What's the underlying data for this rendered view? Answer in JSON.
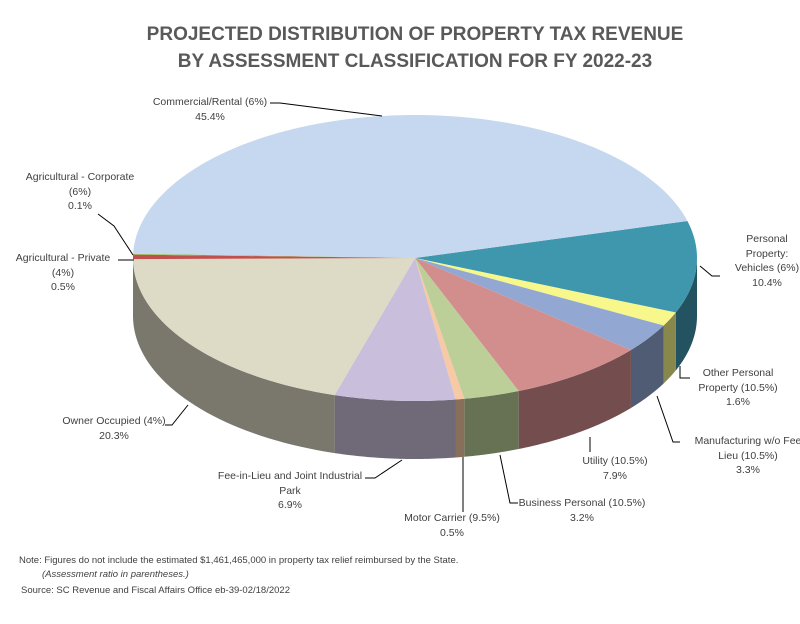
{
  "chart_data": {
    "type": "pie",
    "title": [
      "PROJECTED DISTRIBUTION OF PROPERTY TAX REVENUE",
      "BY ASSESSMENT CLASSIFICATION  FOR FY 2022-23"
    ],
    "three_d": true,
    "slices": [
      {
        "label": "Personal Property: Vehicles (6%)",
        "lines": [
          "Personal",
          "Property:",
          "Vehicles (6%)"
        ],
        "pct": "10.4%",
        "value": 10.4,
        "color": "#3f97ae"
      },
      {
        "label": "Other Personal Property (10.5%)",
        "lines": [
          "Other Personal",
          "Property (10.5%)"
        ],
        "pct": "1.6%",
        "value": 1.6,
        "color": "#f7f78c"
      },
      {
        "label": "Manufacturing w/o Fee Lieu (10.5%)",
        "lines": [
          "Manufacturing w/o Fee",
          "Lieu (10.5%)"
        ],
        "pct": "3.3%",
        "value": 3.3,
        "color": "#92a8d3"
      },
      {
        "label": "Utility (10.5%)",
        "lines": [
          "Utility (10.5%)"
        ],
        "pct": "7.9%",
        "value": 7.9,
        "color": "#d28e8d"
      },
      {
        "label": "Business Personal (10.5%)",
        "lines": [
          "Business Personal (10.5%)"
        ],
        "pct": "3.2%",
        "value": 3.2,
        "color": "#bccf99"
      },
      {
        "label": "Motor Carrier (9.5%)",
        "lines": [
          "Motor Carrier (9.5%)"
        ],
        "pct": "0.5%",
        "value": 0.5,
        "color": "#f7c9a4"
      },
      {
        "label": "Fee-in-Lieu and Joint Industrial Park",
        "lines": [
          "Fee-in-Lieu and Joint Industrial",
          "Park"
        ],
        "pct": "6.9%",
        "value": 6.9,
        "color": "#c9bedb"
      },
      {
        "label": "Owner Occupied (4%)",
        "lines": [
          "Owner Occupied (4%)"
        ],
        "pct": "20.3%",
        "value": 20.3,
        "color": "#dddac6"
      },
      {
        "label": "Agricultural - Private (4%)",
        "lines": [
          "Agricultural - Private",
          "(4%)"
        ],
        "pct": "0.5%",
        "value": 0.5,
        "color": "#c0504d"
      },
      {
        "label": "Agricultural - Corporate (6%)",
        "lines": [
          "Agricultural - Corporate",
          "(6%)"
        ],
        "pct": "0.1%",
        "value": 0.1,
        "color": "#9bbb59"
      },
      {
        "label": "Commercial/Rental (6%)",
        "lines": [
          "Commercial/Rental (6%)"
        ],
        "pct": "45.4%",
        "value": 45.4,
        "color": "#c6d8ef"
      }
    ]
  },
  "footnote": {
    "note": "Note: Figures do not include the estimated $1,461,465,000 in property tax relief reimbursed by the State.",
    "ratio": "(Assessment ratio in parentheses.)",
    "source": "Source: SC Revenue and Fiscal Affairs Office eb-39-02/18/2022"
  }
}
